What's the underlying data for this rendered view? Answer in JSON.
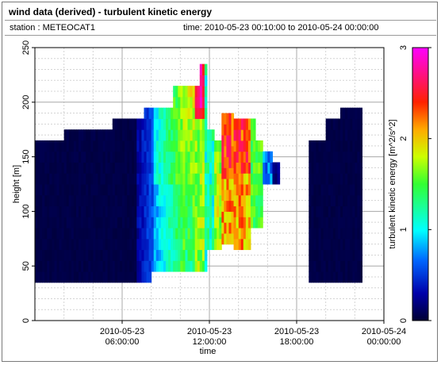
{
  "window": {
    "title": "wind data (derived) - turbulent kinetic energy",
    "station": "station : METEOCAT1",
    "time_range": "time: 2010-05-23 00:10:00 to 2010-05-24 00:00:00"
  },
  "chart_data": {
    "type": "heatmap",
    "xlabel": "time",
    "ylabel": "height [m]",
    "colorbar_label": "turbulent kinetic energy [m^2/s^2]",
    "x_range_hours": [
      0,
      24
    ],
    "ylim": [
      0,
      250
    ],
    "x_ticks": [
      {
        "hour": 6,
        "line1": "2010-05-23",
        "line2": "06:00:00"
      },
      {
        "hour": 12,
        "line1": "2010-05-23",
        "line2": "12:00:00"
      },
      {
        "hour": 18,
        "line1": "2010-05-23",
        "line2": "18:00:00"
      },
      {
        "hour": 24,
        "line1": "2010-05-24",
        "line2": "00:00:00"
      }
    ],
    "y_ticks": [
      "0",
      "50",
      "100",
      "150",
      "200",
      "250"
    ],
    "y_tick_values": [
      0,
      50,
      100,
      150,
      200,
      250
    ],
    "colorbar_ticks": [
      "0",
      "1",
      "2",
      "3"
    ],
    "colorbar_tick_values": [
      0,
      1,
      2,
      3
    ],
    "colorbar_range": [
      0,
      3
    ],
    "grid": true,
    "colors": {
      "low": "#000033",
      "mid": "#00ffff",
      "high": "#ff00ff"
    }
  }
}
